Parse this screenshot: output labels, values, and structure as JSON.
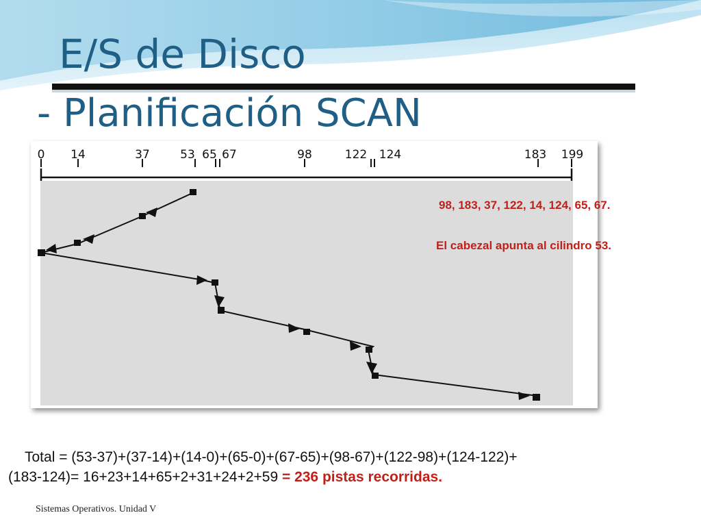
{
  "slide": {
    "title_line_1": "E/S de Disco",
    "title_line_2": "- Planificación SCAN",
    "footer": "Sistemas Operativos. Unidad V"
  },
  "figure": {
    "axis_labels": [
      "0",
      "14",
      "37",
      "53",
      "65",
      "67",
      "98",
      "122",
      "124",
      "183",
      "199"
    ],
    "head_start": 53,
    "service_order": [
      53,
      37,
      14,
      0,
      65,
      67,
      98,
      122,
      124,
      183
    ]
  },
  "notes": {
    "request_queue": "98, 183, 37, 122, 14, 124, 65, 67.",
    "head_position": "El cabezal apunta al cilindro 53."
  },
  "total": {
    "line_1": "Total = (53-37)+(37-14)+(14-0)+(65-0)+(67-65)+(98-67)+(122-98)+(124-122)+",
    "line_2_prefix": "(183-124)= 16+23+14+65+2+31+24+2+59 ",
    "result": "= 236 pistas recorridas."
  },
  "colors": {
    "title": "#1f5f86",
    "accent_red": "#c0201a",
    "plot_background": "#dcdcdc"
  }
}
